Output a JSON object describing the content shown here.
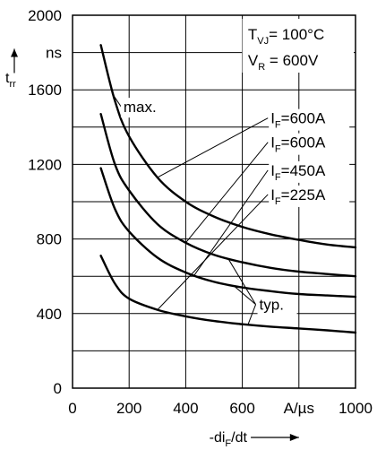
{
  "chart_data": {
    "type": "line",
    "title": "",
    "xlabel": "-di_F/dt",
    "ylabel": "t_rr",
    "x_unit": "A/µs",
    "y_unit": "ns",
    "xlim": [
      0,
      1000
    ],
    "ylim": [
      0,
      2000
    ],
    "x_ticks": [
      0,
      200,
      400,
      600,
      1000
    ],
    "y_ticks": [
      0,
      400,
      800,
      1200,
      1600,
      2000
    ],
    "grid": true,
    "conditions": [
      "T_VJ = 100°C",
      "V_R = 600V"
    ],
    "curve_labels": {
      "max": "max.",
      "typ": "typ."
    },
    "series": [
      {
        "name": "I_F=600A max.",
        "x": [
          100,
          150,
          200,
          300,
          400,
          500,
          600,
          700,
          800,
          900,
          1000
        ],
        "y": [
          1840,
          1540,
          1350,
          1130,
          1000,
          920,
          865,
          825,
          795,
          770,
          755
        ]
      },
      {
        "name": "I_F=600A typ.",
        "x": [
          100,
          150,
          200,
          300,
          400,
          500,
          600,
          700,
          800,
          900,
          1000
        ],
        "y": [
          1470,
          1200,
          1060,
          880,
          780,
          715,
          675,
          645,
          625,
          612,
          600
        ]
      },
      {
        "name": "I_F=450A typ.",
        "x": [
          100,
          150,
          200,
          300,
          400,
          500,
          600,
          700,
          800,
          900,
          1000
        ],
        "y": [
          1180,
          960,
          840,
          700,
          620,
          570,
          540,
          520,
          505,
          497,
          490
        ]
      },
      {
        "name": "I_F=225A typ.",
        "x": [
          100,
          150,
          200,
          300,
          400,
          500,
          600,
          700,
          800,
          900,
          1000
        ],
        "y": [
          710,
          560,
          480,
          420,
          385,
          360,
          343,
          330,
          320,
          310,
          298
        ]
      }
    ]
  }
}
